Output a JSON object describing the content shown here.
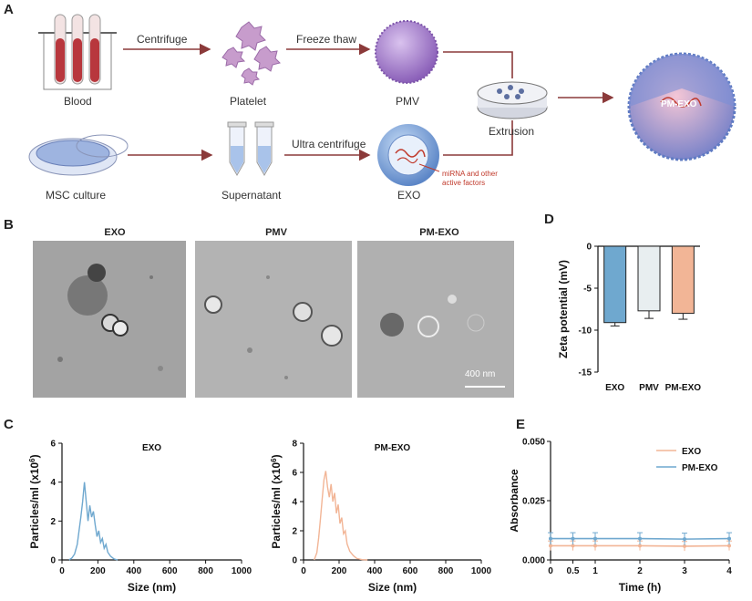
{
  "panel_a": {
    "letter": "A",
    "blood": "Blood",
    "centrifuge": "Centrifuge",
    "platelet": "Platelet",
    "freeze_thaw": "Freeze thaw",
    "pmv": "PMV",
    "extrusion": "Extrusion",
    "msc_culture": "MSC culture",
    "supernatant": "Supernatant",
    "ultra_centrifuge": "Ultra centrifuge",
    "exo": "EXO",
    "mirna_note_1": "miRNA and other",
    "mirna_note_2": "active factors",
    "pm_exo_label": "PM-EXO"
  },
  "panel_b": {
    "letter": "B",
    "titles": [
      "EXO",
      "PMV",
      "PM-EXO"
    ],
    "scale_bar": "400 nm"
  },
  "colors": {
    "arrow": "#8b3a3a",
    "exo_bar": "#6fa8cf",
    "pmv_bar": "#e8eef0",
    "pmexo_bar": "#f2b596",
    "exo_line": "#6fa8cf",
    "pmexo_line": "#f2b596"
  },
  "chart_data": [
    {
      "id": "D",
      "letter": "D",
      "type": "bar",
      "categories": [
        "EXO",
        "PMV",
        "PM-EXO"
      ],
      "values": [
        -9.1,
        -7.7,
        -8.0
      ],
      "errors": [
        0.4,
        0.9,
        0.7
      ],
      "ylabel": "Zeta potential (mV)",
      "ylim": [
        -15,
        0
      ],
      "yticks": [
        "0",
        "-5",
        "-10",
        "-15"
      ],
      "ytick_values": [
        0,
        -5,
        -10,
        -15
      ]
    },
    {
      "id": "C1",
      "letter": "C",
      "type": "line",
      "title": "EXO",
      "xlabel": "Size (nm)",
      "ylabel": "Particles/ml (x10",
      "ylabel_sup": "6",
      "ylabel_end": ")",
      "xlim": [
        0,
        1000
      ],
      "ylim": [
        0,
        6
      ],
      "xticks": [
        "0",
        "200",
        "400",
        "600",
        "800",
        "1000"
      ],
      "xtick_values": [
        0,
        200,
        400,
        600,
        800,
        1000
      ],
      "yticks": [
        "0",
        "2",
        "4",
        "6"
      ],
      "ytick_values": [
        0,
        2,
        4,
        6
      ],
      "x": [
        40,
        55,
        70,
        85,
        95,
        105,
        115,
        125,
        135,
        145,
        155,
        165,
        175,
        185,
        195,
        205,
        215,
        225,
        235,
        245,
        255,
        270,
        290,
        310
      ],
      "y": [
        0,
        0.1,
        0.3,
        0.8,
        1.5,
        2.2,
        3.0,
        4.0,
        3.0,
        2.0,
        2.8,
        2.2,
        2.5,
        1.8,
        1.2,
        1.5,
        0.9,
        1.1,
        0.6,
        0.8,
        0.4,
        0.2,
        0.05,
        0
      ],
      "color": "#6fa8cf"
    },
    {
      "id": "C2",
      "type": "line",
      "title": "PM-EXO",
      "xlabel": "Size (nm)",
      "ylabel": "Particles/ml (x10",
      "ylabel_sup": "6",
      "ylabel_end": ")",
      "xlim": [
        0,
        1000
      ],
      "ylim": [
        0,
        8
      ],
      "xticks": [
        "0",
        "200",
        "400",
        "600",
        "800",
        "1000"
      ],
      "xtick_values": [
        0,
        200,
        400,
        600,
        800,
        1000
      ],
      "yticks": [
        "0",
        "2",
        "4",
        "6",
        "8"
      ],
      "ytick_values": [
        0,
        2,
        4,
        6,
        8
      ],
      "x": [
        60,
        75,
        85,
        95,
        105,
        115,
        125,
        135,
        145,
        155,
        165,
        175,
        185,
        195,
        205,
        215,
        225,
        235,
        245,
        260,
        280,
        300,
        330,
        360
      ],
      "y": [
        0,
        0.5,
        1.5,
        2.8,
        4.2,
        5.5,
        6.1,
        5.0,
        4.3,
        5.2,
        4.0,
        4.6,
        3.2,
        3.8,
        2.5,
        2.9,
        1.8,
        2.0,
        1.1,
        0.6,
        0.3,
        0.1,
        0.02,
        0
      ],
      "color": "#f2b596"
    },
    {
      "id": "E",
      "letter": "E",
      "type": "line",
      "xlabel": "Time (h)",
      "ylabel": "Absorbance",
      "xlim": [
        0,
        4
      ],
      "ylim": [
        0,
        0.05
      ],
      "xticks": [
        "0",
        "0.5",
        "1",
        "2",
        "3",
        "4"
      ],
      "xtick_values": [
        0,
        0.5,
        1,
        2,
        3,
        4
      ],
      "yticks": [
        "0.000",
        "0.025",
        "0.050"
      ],
      "ytick_values": [
        0,
        0.025,
        0.05
      ],
      "legend_position": "top-right",
      "series": [
        {
          "name": "EXO",
          "x": [
            0,
            0.5,
            1,
            2,
            3,
            4
          ],
          "y": [
            0.006,
            0.006,
            0.006,
            0.006,
            0.0058,
            0.006
          ],
          "err": [
            0.002,
            0.002,
            0.002,
            0.002,
            0.002,
            0.002
          ],
          "color": "#f2b596"
        },
        {
          "name": "PM-EXO",
          "x": [
            0,
            0.5,
            1,
            2,
            3,
            4
          ],
          "y": [
            0.009,
            0.009,
            0.009,
            0.009,
            0.0088,
            0.009
          ],
          "err": [
            0.0025,
            0.0025,
            0.0025,
            0.0025,
            0.0025,
            0.0025
          ],
          "color": "#6fa8cf"
        }
      ]
    }
  ]
}
